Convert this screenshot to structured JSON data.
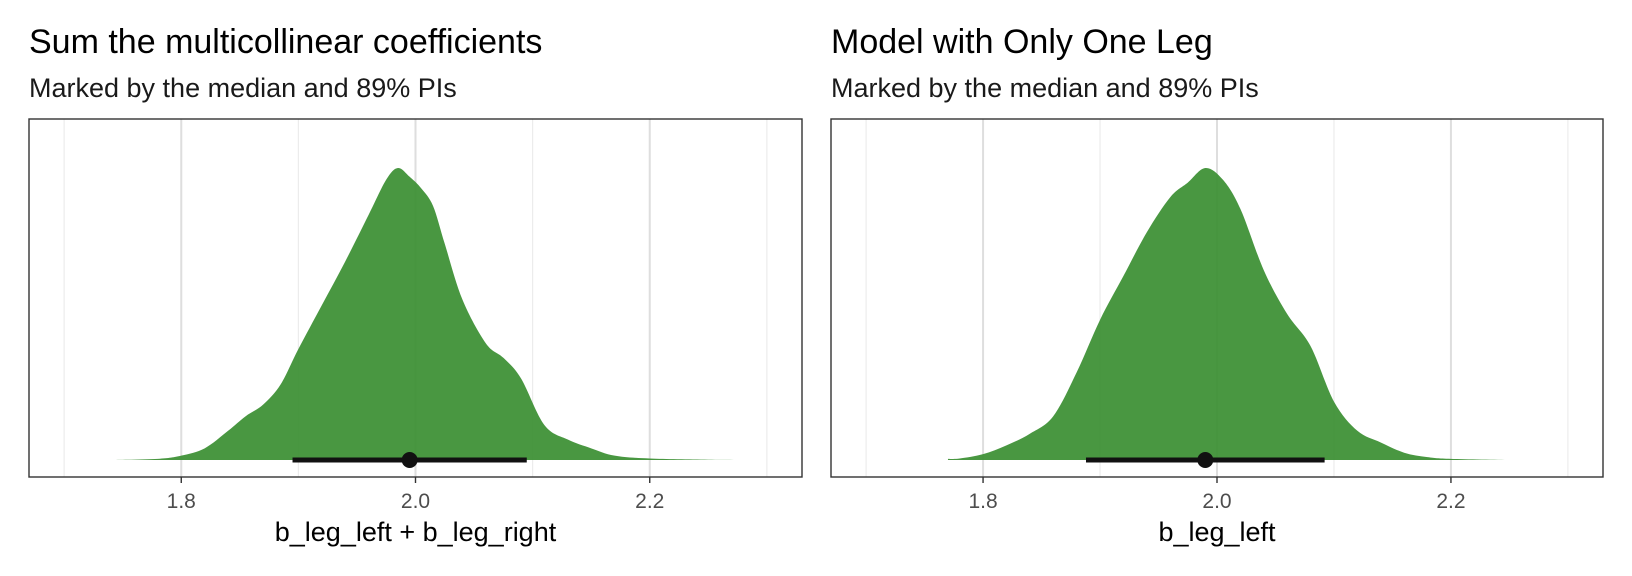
{
  "chart_data": [
    {
      "type": "density",
      "title": "Sum the multicollinear coefficients",
      "subtitle": "Marked by the median and 89% PIs",
      "xlabel": "b_leg_left + b_leg_right",
      "xlim": [
        1.67,
        2.33
      ],
      "xticks": [
        1.8,
        2.0,
        2.2
      ],
      "tick_labels": [
        "1.8",
        "2.0",
        "2.2"
      ],
      "grid": true,
      "fill_color": "#3a8e31",
      "density": {
        "x": [
          1.74,
          1.78,
          1.8,
          1.82,
          1.84,
          1.855,
          1.87,
          1.885,
          1.9,
          1.92,
          1.94,
          1.96,
          1.975,
          1.985,
          1.995,
          2.005,
          2.015,
          2.025,
          2.04,
          2.06,
          2.075,
          2.09,
          2.11,
          2.13,
          2.15,
          2.17,
          2.2,
          2.25,
          2.3
        ],
        "y": [
          0.0,
          0.004,
          0.015,
          0.04,
          0.1,
          0.15,
          0.19,
          0.26,
          0.38,
          0.53,
          0.68,
          0.84,
          0.96,
          1.0,
          0.97,
          0.93,
          0.87,
          0.74,
          0.55,
          0.4,
          0.35,
          0.28,
          0.12,
          0.07,
          0.04,
          0.015,
          0.005,
          0.001,
          0.0
        ]
      },
      "median": 1.995,
      "interval": [
        1.895,
        2.095
      ]
    },
    {
      "type": "density",
      "title": "Model with Only One Leg",
      "subtitle": "Marked by the median and 89% PIs",
      "xlabel": "b_leg_left",
      "xlim": [
        1.67,
        2.33
      ],
      "xticks": [
        1.8,
        2.0,
        2.2
      ],
      "tick_labels": [
        "1.8",
        "2.0",
        "2.2"
      ],
      "grid": true,
      "fill_color": "#3a8e31",
      "density": {
        "x": [
          1.77,
          1.78,
          1.8,
          1.82,
          1.84,
          1.86,
          1.88,
          1.9,
          1.92,
          1.94,
          1.96,
          1.975,
          1.99,
          2.005,
          2.02,
          2.04,
          2.06,
          2.08,
          2.1,
          2.12,
          2.14,
          2.16,
          2.18,
          2.2,
          2.25
        ],
        "y": [
          0.004,
          0.005,
          0.02,
          0.05,
          0.09,
          0.15,
          0.3,
          0.48,
          0.63,
          0.78,
          0.9,
          0.95,
          1.0,
          0.96,
          0.86,
          0.65,
          0.5,
          0.39,
          0.2,
          0.1,
          0.06,
          0.025,
          0.01,
          0.004,
          0.0
        ]
      },
      "median": 1.99,
      "interval": [
        1.888,
        2.092
      ]
    }
  ]
}
